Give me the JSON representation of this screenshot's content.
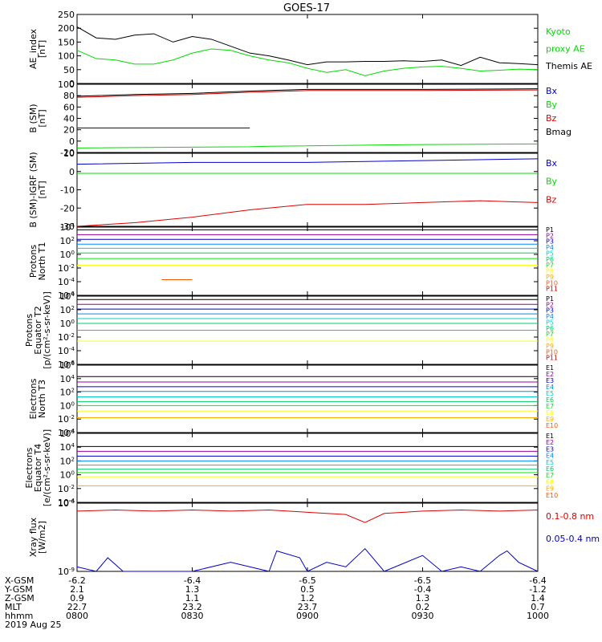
{
  "title": "GOES-17",
  "colors": {
    "black": "#000000",
    "red": "#dd0000",
    "green": "#00dd00",
    "blue": "#0000cc",
    "p_palette": [
      "#000000",
      "#990099",
      "#0000cc",
      "#0088ff",
      "#00cccc",
      "#00cc66",
      "#00ee00",
      "#ffff00",
      "#ffaa00",
      "#ff5500",
      "#cc0000"
    ]
  },
  "x_axis": {
    "time_range": [
      "0800",
      "1000"
    ],
    "ticks": [
      {
        "t": "0800",
        "X-GSM": "-6.2",
        "Y-GSM": "2.1",
        "Z-GSM": "0.9",
        "MLT": "22.7",
        "hhmm": "0800"
      },
      {
        "t": "0830",
        "X-GSM": "-6.4",
        "Y-GSM": "1.3",
        "Z-GSM": "1.1",
        "MLT": "23.2",
        "hhmm": "0830"
      },
      {
        "t": "0900",
        "X-GSM": "-6.5",
        "Y-GSM": "0.5",
        "Z-GSM": "1.2",
        "MLT": "23.7",
        "hhmm": "0900"
      },
      {
        "t": "0930",
        "X-GSM": "-6.5",
        "Y-GSM": "-0.4",
        "Z-GSM": "1.3",
        "MLT": "0.2",
        "hhmm": "0930"
      },
      {
        "t": "1000",
        "X-GSM": "-6.4",
        "Y-GSM": "-1.2",
        "Z-GSM": "1.4",
        "MLT": "0.7",
        "hhmm": "1000"
      }
    ],
    "row_labels": [
      "X-GSM",
      "Y-GSM",
      "Z-GSM",
      "MLT",
      "hhmm"
    ],
    "date": "2019 Aug 25"
  },
  "chart_data": [
    {
      "type": "line",
      "ylabel": [
        "AE_index",
        "[nT]"
      ],
      "ylim": [
        0,
        250
      ],
      "yticks": [
        "0",
        "50",
        "100",
        "150",
        "200",
        "250"
      ],
      "legend": [
        {
          "text": "Kyoto",
          "color": "#00dd00"
        },
        {
          "text": "proxy AE",
          "color": "#00dd00"
        },
        {
          "text": "Themis AE",
          "color": "#000000"
        }
      ],
      "series": [
        {
          "name": "Themis AE",
          "color": "#000000",
          "t": [
            "0800",
            "0805",
            "0810",
            "0815",
            "0820",
            "0825",
            "0830",
            "0835",
            "0840",
            "0845",
            "0850",
            "0855",
            "0900",
            "0905",
            "0910",
            "0915",
            "0920",
            "0925",
            "0930",
            "0935",
            "0940",
            "0945",
            "0950",
            "0955",
            "1000"
          ],
          "values": [
            205,
            165,
            160,
            175,
            180,
            150,
            170,
            160,
            135,
            110,
            100,
            85,
            68,
            78,
            78,
            80,
            80,
            82,
            80,
            85,
            65,
            95,
            75,
            72,
            68
          ]
        },
        {
          "name": "Kyoto proxy AE",
          "color": "#00dd00",
          "t": [
            "0800",
            "0805",
            "0810",
            "0815",
            "0820",
            "0825",
            "0830",
            "0835",
            "0840",
            "0845",
            "0850",
            "0855",
            "0900",
            "0905",
            "0910",
            "0915",
            "0920",
            "0925",
            "0930",
            "0935",
            "0940",
            "0945",
            "0950",
            "0955",
            "1000"
          ],
          "values": [
            120,
            90,
            85,
            70,
            70,
            85,
            110,
            125,
            120,
            100,
            85,
            75,
            55,
            40,
            50,
            28,
            45,
            55,
            60,
            62,
            55,
            45,
            48,
            52,
            50
          ]
        }
      ]
    },
    {
      "type": "line",
      "ylabel": [
        "B (SM)",
        "[nT]"
      ],
      "ylim": [
        -20,
        100
      ],
      "yticks": [
        "-20",
        "0",
        "20",
        "40",
        "60",
        "80",
        "100"
      ],
      "legend": [
        {
          "text": "Bx",
          "color": "#0000cc"
        },
        {
          "text": "By",
          "color": "#00dd00"
        },
        {
          "text": "Bz",
          "color": "#dd0000"
        },
        {
          "text": "Bmag",
          "color": "#000000"
        }
      ],
      "series": [
        {
          "name": "Bx",
          "color": "#0000cc",
          "t": [
            "0800",
            "0845",
            "0850",
            "1000"
          ],
          "values": [
            23,
            23,
            null,
            24
          ],
          "gap": [
            "0846",
            "0850"
          ]
        },
        {
          "name": "By",
          "color": "#00dd00",
          "t": [
            "0800",
            "0845",
            "0850",
            "0930",
            "1000"
          ],
          "values": [
            -12,
            -10,
            -9,
            -6,
            -5
          ]
        },
        {
          "name": "Bz",
          "color": "#dd0000",
          "t": [
            "0800",
            "0815",
            "0830",
            "0845",
            "0850",
            "0900",
            "0930",
            "1000"
          ],
          "values": [
            77,
            80,
            82,
            86,
            87,
            89,
            89,
            90
          ]
        },
        {
          "name": "Bmag",
          "color": "#000000",
          "t": [
            "0800",
            "0815",
            "0830",
            "0845",
            "0850",
            "0900",
            "0930",
            "1000"
          ],
          "values": [
            79,
            82,
            84,
            88,
            89,
            91,
            91,
            92
          ]
        }
      ]
    },
    {
      "type": "line",
      "ylabel": [
        "B (SM)-IGRF (SM)",
        "[nT]"
      ],
      "ylim": [
        -30,
        10
      ],
      "yticks": [
        "-30",
        "-20",
        "-10",
        "0",
        "10"
      ],
      "legend": [
        {
          "text": "Bx",
          "color": "#0000cc"
        },
        {
          "text": "By",
          "color": "#00dd00"
        },
        {
          "text": "Bz",
          "color": "#dd0000"
        }
      ],
      "series": [
        {
          "name": "Bx",
          "color": "#0000cc",
          "t": [
            "0800",
            "0830",
            "0900",
            "0930",
            "1000"
          ],
          "values": [
            4,
            5,
            5,
            6,
            7
          ]
        },
        {
          "name": "By",
          "color": "#00dd00",
          "t": [
            "0800",
            "0830",
            "0900",
            "0930",
            "1000"
          ],
          "values": [
            -1,
            -1,
            -1,
            -1,
            -1
          ]
        },
        {
          "name": "Bz",
          "color": "#dd0000",
          "t": [
            "0800",
            "0815",
            "0830",
            "0845",
            "0900",
            "0915",
            "0930",
            "0945",
            "1000"
          ],
          "values": [
            -30,
            -28,
            -25,
            -21,
            -18,
            -18,
            -17,
            -16,
            -17
          ]
        }
      ]
    },
    {
      "type": "line",
      "ylabel": [
        "Protons",
        "North T1"
      ],
      "ylim": [
        -6,
        4
      ],
      "log": true,
      "yticks": [
        "10^4",
        "10^2",
        "10^0",
        "10^-2",
        "10^-4",
        "10^-6"
      ],
      "legend": [
        "P1",
        "P2",
        "P3",
        "P4",
        "P5",
        "P6",
        "P7",
        "P8",
        "P9",
        "P10",
        "P11"
      ],
      "levels": [
        3.6,
        2.9,
        2.2,
        1.5,
        0.9,
        0.2,
        -0.6,
        -1.6,
        null,
        null,
        null
      ],
      "fragment": {
        "name": "P10",
        "t": [
          "0822",
          "0830"
        ],
        "value": -3.7
      }
    },
    {
      "type": "line",
      "ylabel": [
        "Protons",
        "Equator T2",
        "[p/(cm²-s-sr-keV)]"
      ],
      "ylim": [
        -6,
        4
      ],
      "log": true,
      "yticks": [
        "10^4",
        "10^2",
        "10^0",
        "10^-2",
        "10^-4",
        "10^-6"
      ],
      "legend": [
        "P1",
        "P2",
        "P3",
        "P4",
        "P5",
        "P6",
        "P7",
        "P8",
        "P9",
        "P10",
        "P11"
      ],
      "levels": [
        3.5,
        2.8,
        2.1,
        1.4,
        0.7,
        0.0,
        -1.0,
        -2.6,
        null,
        null,
        null
      ]
    },
    {
      "type": "line",
      "ylabel": [
        "Electrons",
        "North T3"
      ],
      "ylim": [
        -4,
        6
      ],
      "log": true,
      "yticks": [
        "10^6",
        "10^4",
        "10^2",
        "10^0",
        "10^-2",
        "10^-4"
      ],
      "legend": [
        "E1",
        "E2",
        "E3",
        "E4",
        "E5",
        "E6",
        "E7",
        "E8",
        "E9",
        "E10"
      ],
      "levels": [
        4.3,
        3.5,
        2.8,
        2.1,
        1.3,
        0.6,
        0.0,
        -0.8,
        -1.8,
        null
      ]
    },
    {
      "type": "line",
      "ylabel": [
        "Electrons",
        "Equator T4",
        "[e/(cm²-s-sr-keV)]"
      ],
      "ylim": [
        -4,
        6
      ],
      "log": true,
      "yticks": [
        "10^6",
        "10^4",
        "10^2",
        "10^0",
        "10^-2",
        "10^-4"
      ],
      "legend": [
        "E1",
        "E2",
        "E3",
        "E4",
        "E5",
        "E6",
        "E7",
        "E8",
        "E9",
        "E10"
      ],
      "levels": [
        4.1,
        3.4,
        2.7,
        2.0,
        1.4,
        0.8,
        0.3,
        -0.3,
        -1.6,
        null
      ]
    },
    {
      "type": "line",
      "ylabel": [
        "Xray flux",
        "[W/m2]"
      ],
      "ylim": [
        -9,
        -6
      ],
      "log": true,
      "yticks": [
        "10^-6",
        "10^-9"
      ],
      "legend": [
        {
          "text": "0.1-0.8 nm",
          "color": "#dd0000"
        },
        {
          "text": "0.05-0.4 nm",
          "color": "#0000cc"
        }
      ],
      "series": [
        {
          "name": "0.1-0.8 nm",
          "color": "#dd0000",
          "t": [
            "0800",
            "0810",
            "0820",
            "0830",
            "0840",
            "0850",
            "0900",
            "0910",
            "0915",
            "0920",
            "0930",
            "0940",
            "0950",
            "1000"
          ],
          "values": [
            -6.35,
            -6.3,
            -6.35,
            -6.3,
            -6.35,
            -6.3,
            -6.4,
            -6.5,
            -6.85,
            -6.45,
            -6.35,
            -6.3,
            -6.35,
            -6.3
          ]
        },
        {
          "name": "0.05-0.4 nm",
          "color": "#0000cc",
          "t": [
            "0800",
            "0805",
            "0808",
            "0812",
            "0820",
            "0830",
            "0840",
            "0850",
            "0852",
            "0858",
            "0900",
            "0905",
            "0910",
            "0915",
            "0920",
            "0930",
            "0935",
            "0940",
            "0945",
            "0950",
            "0952",
            "0955",
            "1000"
          ],
          "values": [
            -8.8,
            -9.0,
            -8.4,
            -9.0,
            -9.0,
            -9.0,
            -8.6,
            -9.0,
            -8.1,
            -8.4,
            -9.0,
            -8.6,
            -8.8,
            -8.0,
            -9.0,
            -8.3,
            -9.0,
            -8.8,
            -9.0,
            -8.3,
            -8.1,
            -8.6,
            -9.0
          ]
        }
      ]
    }
  ]
}
